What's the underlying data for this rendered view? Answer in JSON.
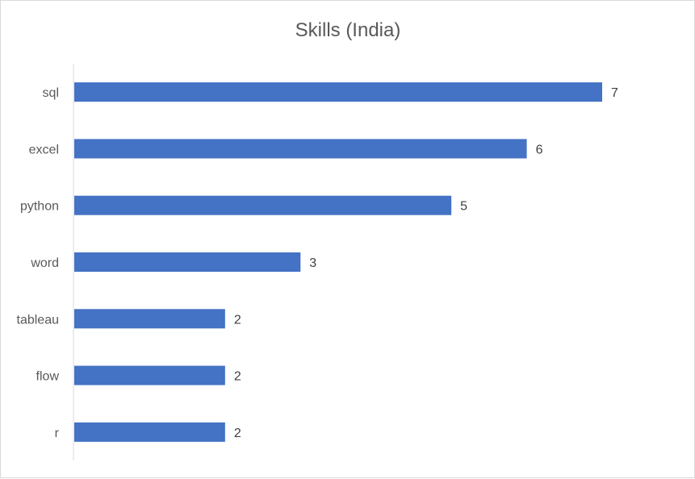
{
  "chart_data": {
    "type": "bar",
    "orientation": "horizontal",
    "title": "Skills (India)",
    "categories": [
      "sql",
      "excel",
      "python",
      "word",
      "tableau",
      "flow",
      "r"
    ],
    "values": [
      7,
      6,
      5,
      3,
      2,
      2,
      2
    ],
    "xlim": [
      0,
      7
    ],
    "grid": false,
    "legend": "none",
    "data_labels": true,
    "bar_color": "#4472C4"
  }
}
